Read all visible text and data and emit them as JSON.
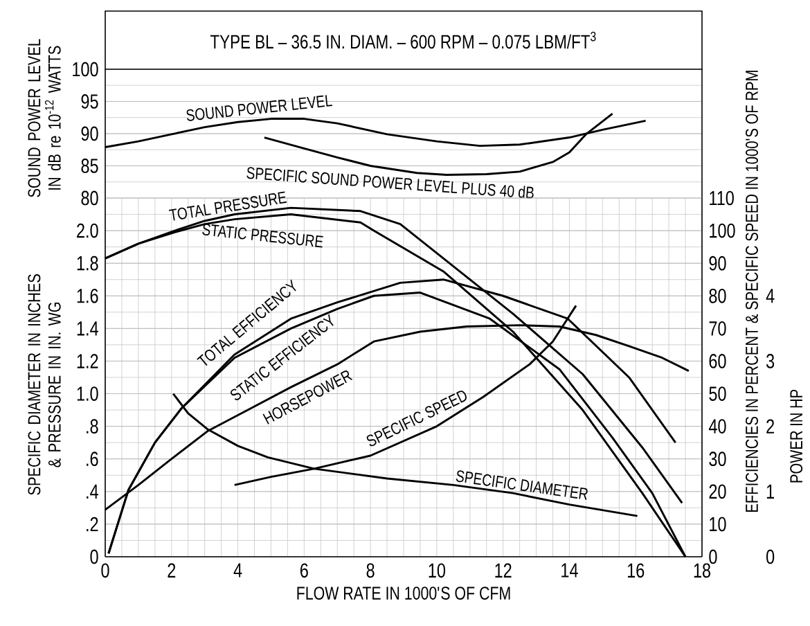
{
  "chart_data": [
    {
      "type": "line",
      "title": "TYPE BL – 36.5 IN. DIAM. – 600 RPM – 0.075 LBM/FT$^{3}$",
      "ylabel": "SOUND POWER LEVEL IN dB re 10$^{-12}$ WATTS",
      "xlim": [
        0,
        18
      ],
      "ylim": [
        80,
        100
      ],
      "yticks": [
        80,
        85,
        90,
        95,
        100
      ],
      "grid": true,
      "tick_labels": "y",
      "series": [
        {
          "name": "SOUND POWER LEVEL",
          "color": "#000000",
          "x": [
            0,
            1,
            2,
            3,
            4,
            5,
            6,
            7,
            8.5,
            10,
            11.3,
            12.5,
            14,
            15,
            16.3
          ],
          "values": [
            87.9,
            88.8,
            89.9,
            91.0,
            91.8,
            92.3,
            92.3,
            91.6,
            89.9,
            88.8,
            88.1,
            88.3,
            89.4,
            90.6,
            92.0
          ]
        },
        {
          "name": "SPECIFIC SOUND POWER LEVEL PLUS 40 dB",
          "color": "#000000",
          "x": [
            4.8,
            6,
            7,
            8,
            9.4,
            10.3,
            11.5,
            12.5,
            13.5,
            14,
            14.5,
            15.3
          ],
          "values": [
            89.4,
            87.7,
            86.3,
            85.0,
            83.9,
            83.6,
            83.7,
            84.1,
            85.6,
            87.1,
            89.9,
            93.1
          ]
        }
      ]
    },
    {
      "type": "line",
      "xlabel": "FLOW RATE IN 1000'S OF CFM",
      "ylabel": "SPECIFIC DIAMETER IN INCHES & PRESSURE IN IN. WG",
      "y2label": "EFFICIENCIES IN PERCENT & SPECIFIC SPEED IN 1000'S OF RPM",
      "y3label": "POWER IN HP",
      "xlim": [
        0,
        18
      ],
      "xticks": [
        0,
        2,
        4,
        6,
        8,
        10,
        12,
        14,
        16,
        18
      ],
      "ylim": [
        0,
        2.2
      ],
      "yticks": [
        0,
        {
          "value": 0.2,
          "label": ".2"
        },
        {
          "value": 0.4,
          "label": ".4"
        },
        {
          "value": 0.6,
          "label": ".6"
        },
        {
          "value": 0.8,
          "label": ".8"
        },
        {
          "value": 1.0,
          "label": "1.0"
        },
        1.2,
        1.4,
        1.6,
        1.8,
        {
          "value": 2.0,
          "label": "2.0"
        }
      ],
      "y2lim": [
        0,
        110
      ],
      "y2ticks": [
        0,
        10,
        20,
        30,
        40,
        50,
        60,
        70,
        80,
        90,
        100,
        110
      ],
      "y3lim": [
        0,
        5.5
      ],
      "y3ticks": [
        0,
        1,
        2,
        3,
        4
      ],
      "grid": true,
      "series": [
        {
          "name": "TOTAL PRESSURE",
          "color": "#000000",
          "x": [
            0,
            1,
            2.1,
            3,
            3.9,
            5.6,
            7.7,
            8.9,
            10.2,
            12.3,
            14.4,
            16.2,
            17.4
          ],
          "values": [
            1.83,
            1.92,
            2.0,
            2.06,
            2.1,
            2.14,
            2.12,
            2.04,
            1.83,
            1.49,
            1.12,
            0.67,
            0.33
          ]
        },
        {
          "name": "STATIC PRESSURE",
          "color": "#000000",
          "x": [
            0,
            1,
            2.1,
            3,
            3.9,
            5.6,
            7.7,
            8.1,
            10.2,
            12.3,
            14.4,
            16.2,
            17.5
          ],
          "values": [
            1.83,
            1.92,
            1.99,
            2.04,
            2.07,
            2.1,
            2.05,
            2.0,
            1.75,
            1.38,
            0.9,
            0.39,
            0
          ]
        },
        {
          "name": "TOTAL EFFICIENCY",
          "axis": "y2",
          "color": "#000000",
          "x": [
            0.1,
            0.7,
            1.5,
            2.3,
            3.9,
            5.6,
            7,
            8.9,
            10.2,
            12,
            13.95,
            15.8,
            17.2
          ],
          "values": [
            1,
            20.5,
            35,
            45.5,
            62,
            73,
            78,
            84,
            85,
            80,
            73,
            55,
            35
          ]
        },
        {
          "name": "STATIC EFFICIENCY",
          "axis": "y2",
          "color": "#000000",
          "x": [
            0.1,
            0.7,
            1.5,
            2.3,
            3.9,
            5.6,
            7,
            8.1,
            9.5,
            11.6,
            13.7,
            15.3,
            16.5,
            17.5
          ],
          "values": [
            1,
            20.5,
            35,
            45.5,
            61,
            70,
            76,
            80,
            81,
            73,
            57.5,
            36.5,
            19.5,
            0
          ]
        },
        {
          "name": "HORSEPOWER",
          "axis": "y3",
          "color": "#000000",
          "x": [
            0,
            1,
            2,
            3.1,
            4.3,
            5.6,
            7,
            8.1,
            9.5,
            10.9,
            12.5,
            13.7,
            14.8,
            15.8,
            16.8,
            17.6
          ],
          "values": [
            0.72,
            1.1,
            1.5,
            1.93,
            2.25,
            2.6,
            2.95,
            3.3,
            3.45,
            3.53,
            3.55,
            3.53,
            3.4,
            3.23,
            3.05,
            2.85
          ]
        },
        {
          "name": "SPECIFIC SPEED",
          "axis": "y2",
          "color": "#000000",
          "x": [
            3.9,
            5,
            6.3,
            8,
            10,
            11.4,
            12.8,
            13.5,
            14.2
          ],
          "values": [
            22,
            24.5,
            27,
            31,
            40,
            49,
            59,
            66,
            77
          ]
        },
        {
          "name": "SPECIFIC DIAMETER",
          "color": "#000000",
          "x": [
            2.05,
            2.5,
            3.1,
            4,
            4.9,
            6.3,
            8.5,
            10.5,
            12.3,
            14,
            16.05
          ],
          "values": [
            1.0,
            0.88,
            0.78,
            0.68,
            0.61,
            0.54,
            0.48,
            0.44,
            0.39,
            0.32,
            0.25
          ]
        }
      ]
    }
  ]
}
